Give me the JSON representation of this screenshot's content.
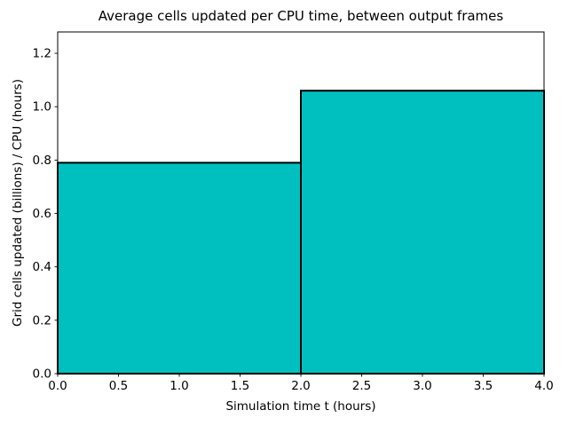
{
  "chart_data": {
    "type": "bar",
    "subtype": "step-histogram",
    "title": "Average cells updated per CPU time, between output frames",
    "xlabel": "Simulation time t (hours)",
    "ylabel": "Grid cells updated (billions) / CPU (hours)",
    "bin_edges": [
      0.0,
      2.0,
      4.0
    ],
    "values": [
      0.79,
      1.06
    ],
    "xlim": [
      0.0,
      4.0
    ],
    "ylim": [
      0.0,
      1.28
    ],
    "xticks": [
      0.0,
      0.5,
      1.0,
      1.5,
      2.0,
      2.5,
      3.0,
      3.5,
      4.0
    ],
    "yticks": [
      0.0,
      0.2,
      0.4,
      0.6,
      0.8,
      1.0,
      1.2
    ],
    "tick_decimals": 1,
    "grid": false,
    "legend": null,
    "colors": {
      "bar_fill": "#00bfbf",
      "bar_edge": "#000000",
      "spine": "#000000",
      "background": "#ffffff"
    }
  }
}
